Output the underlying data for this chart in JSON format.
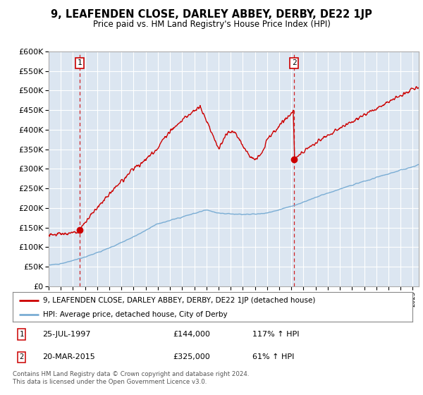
{
  "title": "9, LEAFENDEN CLOSE, DARLEY ABBEY, DERBY, DE22 1JP",
  "subtitle": "Price paid vs. HM Land Registry's House Price Index (HPI)",
  "property_label": "9, LEAFENDEN CLOSE, DARLEY ABBEY, DERBY, DE22 1JP (detached house)",
  "hpi_label": "HPI: Average price, detached house, City of Derby",
  "annotation1_date": "25-JUL-1997",
  "annotation1_price": "£144,000",
  "annotation1_pct": "117% ↑ HPI",
  "annotation2_date": "20-MAR-2015",
  "annotation2_price": "£325,000",
  "annotation2_pct": "61% ↑ HPI",
  "sale1_year": 1997.56,
  "sale1_price": 144000,
  "sale2_year": 2015.22,
  "sale2_price": 325000,
  "property_color": "#cc0000",
  "hpi_color": "#7aadd4",
  "background_color": "#dce6f1",
  "plot_bg_color": "#dce6f1",
  "ylim_min": 0,
  "ylim_max": 600000,
  "xlim_start": 1995.0,
  "xlim_end": 2025.5,
  "yticks": [
    0,
    50000,
    100000,
    150000,
    200000,
    250000,
    300000,
    350000,
    400000,
    450000,
    500000,
    550000,
    600000
  ],
  "footer": "Contains HM Land Registry data © Crown copyright and database right 2024.\nThis data is licensed under the Open Government Licence v3.0."
}
